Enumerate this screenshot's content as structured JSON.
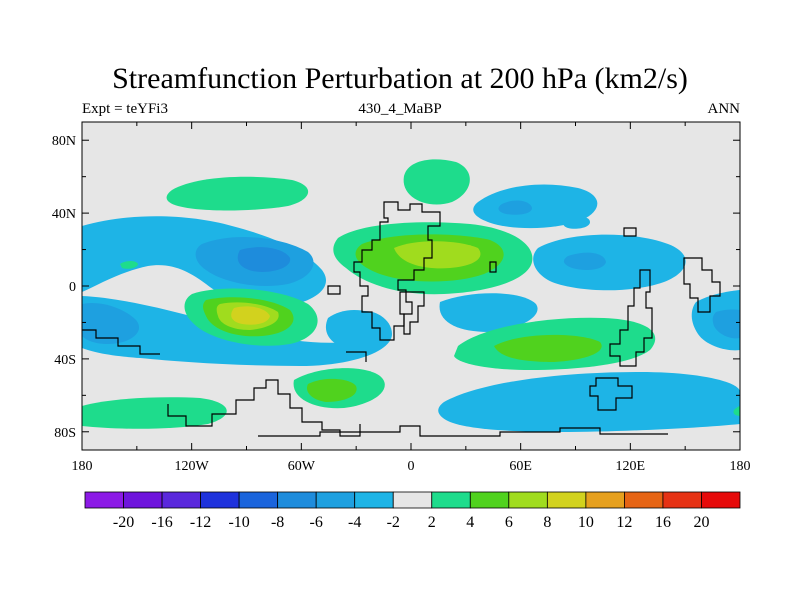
{
  "title": "Streamfunction Perturbation at 200 hPa (km2/s)",
  "subtitle_left": "Expt = teYFi3",
  "subtitle_center": "430_4_MaBP",
  "subtitle_right": "ANN",
  "axes": {
    "lon_labels": [
      "180",
      "120W",
      "60W",
      "0",
      "60E",
      "120E",
      "180"
    ],
    "lat_labels": [
      "80N",
      "40N",
      "0",
      "40S",
      "80S"
    ]
  },
  "colorbar": {
    "labels": [
      "-20",
      "-16",
      "-12",
      "-10",
      "-8",
      "-6",
      "-4",
      "-2",
      "2",
      "4",
      "6",
      "8",
      "10",
      "12",
      "16",
      "20"
    ],
    "colors": [
      "#8c1ae6",
      "#6e14dc",
      "#5a28dc",
      "#1e32dc",
      "#1a64dc",
      "#1e8cdc",
      "#1ea0e0",
      "#1eb4e6",
      "#e6e6e6",
      "#1edc8c",
      "#50d21e",
      "#a0dc1e",
      "#d2d21e",
      "#e6a01e",
      "#e66414",
      "#e63214",
      "#e60a0a"
    ]
  },
  "palette": {
    "neutral": "#e6e6e6",
    "blue_light": "#1eb4e6",
    "blue_mid": "#1ea0e0",
    "blue_dark": "#1e8cdc",
    "blue_deep": "#1a64dc",
    "green": "#1edc8c",
    "green_yellow": "#50d21e",
    "lime": "#a0dc1e",
    "yellow": "#d2d21e"
  }
}
